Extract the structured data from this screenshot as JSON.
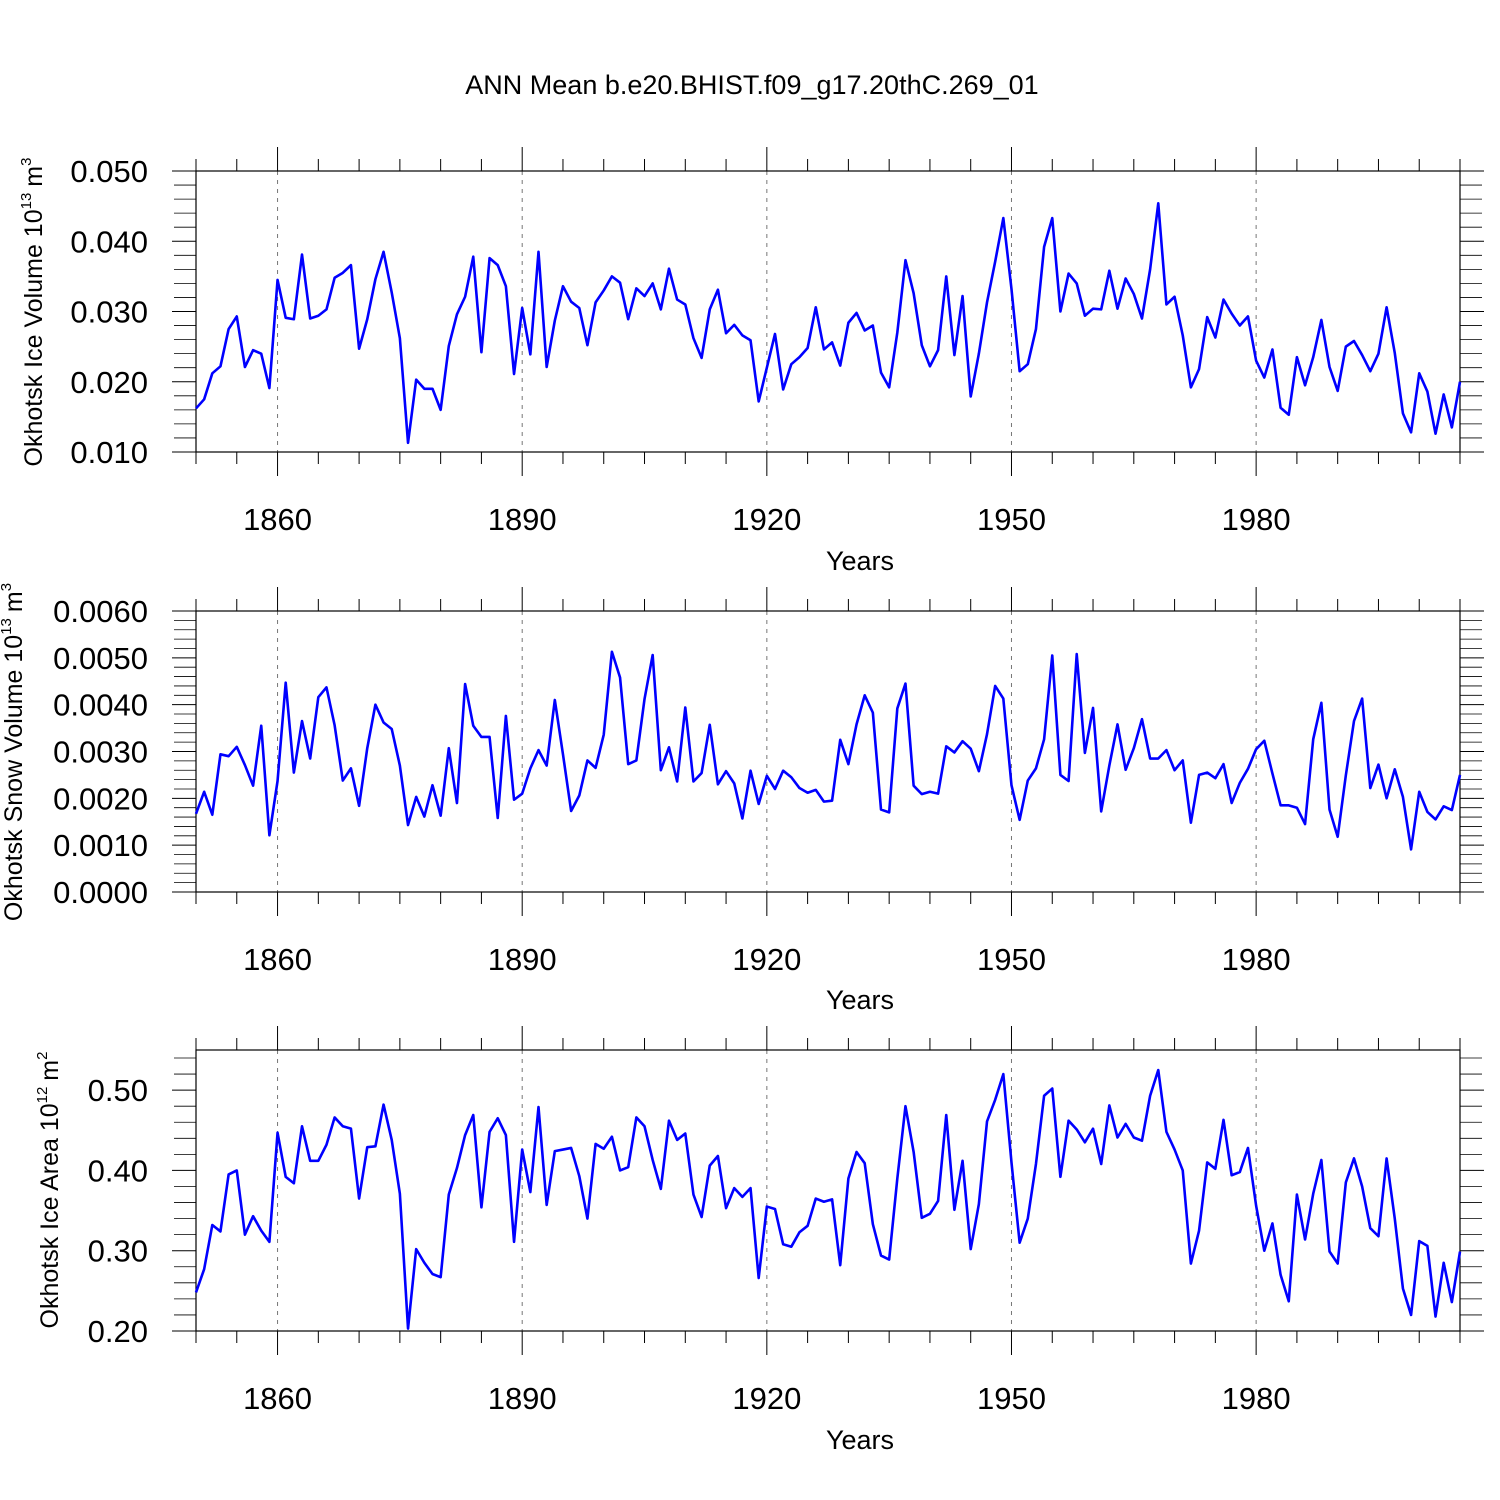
{
  "figure_title": "ANN Mean b.e20.BHIST.f09_g17.20thC.269_01",
  "chart_data": [
    {
      "type": "line",
      "title": "ANN Mean b.e20.BHIST.f09_g17.20thC.269_01",
      "ylabel_main": "Okhotsk Ice Volume 10",
      "ylabel_exp": "13",
      "ylabel_unit": "m",
      "ylabel_unit_exp": "3",
      "xlabel": "Years",
      "xlim": [
        1850,
        2005
      ],
      "ylim": [
        0.01,
        0.05
      ],
      "yticks": [
        0.01,
        0.02,
        0.03,
        0.04,
        0.05
      ],
      "ytick_labels": [
        "0.010",
        "0.020",
        "0.030",
        "0.040",
        "0.050"
      ],
      "xticks": [
        1860,
        1890,
        1920,
        1950,
        1980
      ],
      "xtick_labels": [
        "1860",
        "1890",
        "1920",
        "1950",
        "1980"
      ],
      "line_color": "#0000ff",
      "series": [
        {
          "name": "Okhotsk Ice Volume",
          "x_start": 1850,
          "values": [
            0.0162,
            0.0175,
            0.0212,
            0.0222,
            0.0275,
            0.0293,
            0.0221,
            0.0245,
            0.024,
            0.0191,
            0.0345,
            0.0291,
            0.0289,
            0.0381,
            0.029,
            0.0294,
            0.0303,
            0.0348,
            0.0355,
            0.0366,
            0.0247,
            0.0289,
            0.0346,
            0.0385,
            0.0327,
            0.0262,
            0.0113,
            0.0203,
            0.019,
            0.019,
            0.016,
            0.0251,
            0.0296,
            0.0321,
            0.0378,
            0.0242,
            0.0376,
            0.0366,
            0.0336,
            0.0211,
            0.0305,
            0.0239,
            0.0385,
            0.0221,
            0.0287,
            0.0336,
            0.0314,
            0.0305,
            0.0252,
            0.0313,
            0.033,
            0.035,
            0.0341,
            0.0289,
            0.0333,
            0.0322,
            0.034,
            0.0303,
            0.0361,
            0.0317,
            0.031,
            0.0262,
            0.0234,
            0.0303,
            0.0331,
            0.0269,
            0.0281,
            0.0266,
            0.0259,
            0.0172,
            0.022,
            0.0268,
            0.0189,
            0.0225,
            0.0235,
            0.0248,
            0.0306,
            0.0246,
            0.0256,
            0.0223,
            0.0284,
            0.0298,
            0.0273,
            0.028,
            0.0213,
            0.0192,
            0.027,
            0.0373,
            0.0326,
            0.0252,
            0.0222,
            0.0245,
            0.035,
            0.0238,
            0.0322,
            0.0179,
            0.024,
            0.0313,
            0.0371,
            0.0433,
            0.0332,
            0.0215,
            0.0225,
            0.0275,
            0.0392,
            0.0433,
            0.03,
            0.0354,
            0.034,
            0.0294,
            0.0304,
            0.0303,
            0.0358,
            0.0304,
            0.0347,
            0.0325,
            0.029,
            0.036,
            0.0454,
            0.031,
            0.0321,
            0.0266,
            0.0192,
            0.0218,
            0.0292,
            0.0263,
            0.0317,
            0.0297,
            0.028,
            0.0293,
            0.023,
            0.0206,
            0.0246,
            0.0163,
            0.0153,
            0.0235,
            0.0195,
            0.0235,
            0.0288,
            0.0221,
            0.0187,
            0.025,
            0.0258,
            0.0238,
            0.0215,
            0.024,
            0.0306,
            0.0241,
            0.0155,
            0.0128,
            0.0212,
            0.0186,
            0.0126,
            0.0182,
            0.0135,
            0.02
          ]
        }
      ]
    },
    {
      "type": "line",
      "ylabel_main": "Okhotsk Snow Volume 10",
      "ylabel_exp": "13",
      "ylabel_unit": "m",
      "ylabel_unit_exp": "3",
      "xlabel": "Years",
      "xlim": [
        1850,
        2005
      ],
      "ylim": [
        0.0,
        0.006
      ],
      "yticks": [
        0.0,
        0.001,
        0.002,
        0.003,
        0.004,
        0.005,
        0.006
      ],
      "ytick_labels": [
        "0.0000",
        "0.0010",
        "0.0020",
        "0.0030",
        "0.0040",
        "0.0050",
        "0.0060"
      ],
      "xticks": [
        1860,
        1890,
        1920,
        1950,
        1980
      ],
      "xtick_labels": [
        "1860",
        "1890",
        "1920",
        "1950",
        "1980"
      ],
      "line_color": "#0000ff",
      "series": [
        {
          "name": "Okhotsk Snow Volume",
          "x_start": 1850,
          "values": [
            0.00167,
            0.00214,
            0.00165,
            0.00294,
            0.0029,
            0.0031,
            0.00271,
            0.00227,
            0.00355,
            0.00121,
            0.00237,
            0.00447,
            0.00255,
            0.00365,
            0.00285,
            0.00416,
            0.00437,
            0.00356,
            0.00238,
            0.00264,
            0.00184,
            0.00307,
            0.004,
            0.00362,
            0.00348,
            0.0027,
            0.00143,
            0.00203,
            0.00161,
            0.00228,
            0.00163,
            0.00307,
            0.0019,
            0.00444,
            0.00355,
            0.00331,
            0.00331,
            0.00158,
            0.00376,
            0.00197,
            0.0021,
            0.00264,
            0.00303,
            0.0027,
            0.0041,
            0.00294,
            0.00173,
            0.00206,
            0.00281,
            0.00265,
            0.00336,
            0.00513,
            0.00458,
            0.00273,
            0.00281,
            0.00412,
            0.00506,
            0.0026,
            0.00309,
            0.00236,
            0.00394,
            0.00236,
            0.00254,
            0.00357,
            0.0023,
            0.00258,
            0.00232,
            0.00157,
            0.00259,
            0.00188,
            0.00248,
            0.0022,
            0.00259,
            0.00245,
            0.00222,
            0.00212,
            0.00218,
            0.00193,
            0.00195,
            0.00325,
            0.00273,
            0.00358,
            0.0042,
            0.00383,
            0.00176,
            0.0017,
            0.00392,
            0.00445,
            0.00227,
            0.00209,
            0.00214,
            0.0021,
            0.00311,
            0.00298,
            0.00322,
            0.00306,
            0.00258,
            0.00337,
            0.0044,
            0.00413,
            0.00228,
            0.00154,
            0.00238,
            0.00264,
            0.00326,
            0.00505,
            0.0025,
            0.00237,
            0.00508,
            0.00297,
            0.00393,
            0.00172,
            0.0027,
            0.00358,
            0.00261,
            0.00307,
            0.00369,
            0.00285,
            0.00285,
            0.00303,
            0.0026,
            0.00281,
            0.00148,
            0.0025,
            0.00255,
            0.00243,
            0.00273,
            0.0019,
            0.00233,
            0.00263,
            0.00305,
            0.00323,
            0.00253,
            0.00185,
            0.00185,
            0.0018,
            0.00145,
            0.00326,
            0.00404,
            0.00176,
            0.00118,
            0.00249,
            0.00365,
            0.00413,
            0.00222,
            0.00272,
            0.002,
            0.00262,
            0.00203,
            0.00091,
            0.00214,
            0.00171,
            0.00155,
            0.00183,
            0.00175,
            0.0025
          ]
        }
      ]
    },
    {
      "type": "line",
      "ylabel_main": "Okhotsk Ice Area 10",
      "ylabel_exp": "12",
      "ylabel_unit": "m",
      "ylabel_unit_exp": "2",
      "xlabel": "Years",
      "xlim": [
        1850,
        2005
      ],
      "ylim": [
        0.2,
        0.55
      ],
      "yticks": [
        0.2,
        0.3,
        0.4,
        0.5
      ],
      "ytick_labels": [
        "0.20",
        "0.30",
        "0.40",
        "0.50"
      ],
      "xticks": [
        1860,
        1890,
        1920,
        1950,
        1980
      ],
      "xtick_labels": [
        "1860",
        "1890",
        "1920",
        "1950",
        "1980"
      ],
      "line_color": "#0000ff",
      "series": [
        {
          "name": "Okhotsk Ice Area",
          "x_start": 1850,
          "values": [
            0.248,
            0.277,
            0.332,
            0.324,
            0.395,
            0.4,
            0.32,
            0.343,
            0.325,
            0.311,
            0.447,
            0.392,
            0.384,
            0.455,
            0.412,
            0.412,
            0.432,
            0.466,
            0.455,
            0.452,
            0.365,
            0.429,
            0.43,
            0.482,
            0.438,
            0.371,
            0.203,
            0.302,
            0.285,
            0.271,
            0.267,
            0.37,
            0.403,
            0.444,
            0.469,
            0.354,
            0.448,
            0.465,
            0.444,
            0.311,
            0.426,
            0.373,
            0.479,
            0.357,
            0.424,
            0.426,
            0.428,
            0.393,
            0.34,
            0.433,
            0.427,
            0.442,
            0.4,
            0.404,
            0.466,
            0.455,
            0.413,
            0.377,
            0.462,
            0.438,
            0.446,
            0.37,
            0.342,
            0.406,
            0.418,
            0.353,
            0.378,
            0.367,
            0.378,
            0.266,
            0.355,
            0.352,
            0.308,
            0.305,
            0.323,
            0.331,
            0.365,
            0.361,
            0.364,
            0.282,
            0.39,
            0.423,
            0.409,
            0.333,
            0.294,
            0.289,
            0.39,
            0.48,
            0.423,
            0.341,
            0.346,
            0.362,
            0.469,
            0.351,
            0.412,
            0.302,
            0.358,
            0.461,
            0.488,
            0.52,
            0.41,
            0.31,
            0.34,
            0.408,
            0.493,
            0.502,
            0.392,
            0.462,
            0.451,
            0.435,
            0.452,
            0.408,
            0.481,
            0.441,
            0.458,
            0.441,
            0.437,
            0.493,
            0.525,
            0.448,
            0.426,
            0.4,
            0.284,
            0.325,
            0.41,
            0.402,
            0.463,
            0.394,
            0.398,
            0.428,
            0.356,
            0.3,
            0.334,
            0.27,
            0.237,
            0.37,
            0.314,
            0.371,
            0.413,
            0.299,
            0.284,
            0.385,
            0.415,
            0.38,
            0.328,
            0.318,
            0.415,
            0.34,
            0.253,
            0.22,
            0.312,
            0.306,
            0.218,
            0.285,
            0.236,
            0.299
          ]
        }
      ]
    }
  ]
}
